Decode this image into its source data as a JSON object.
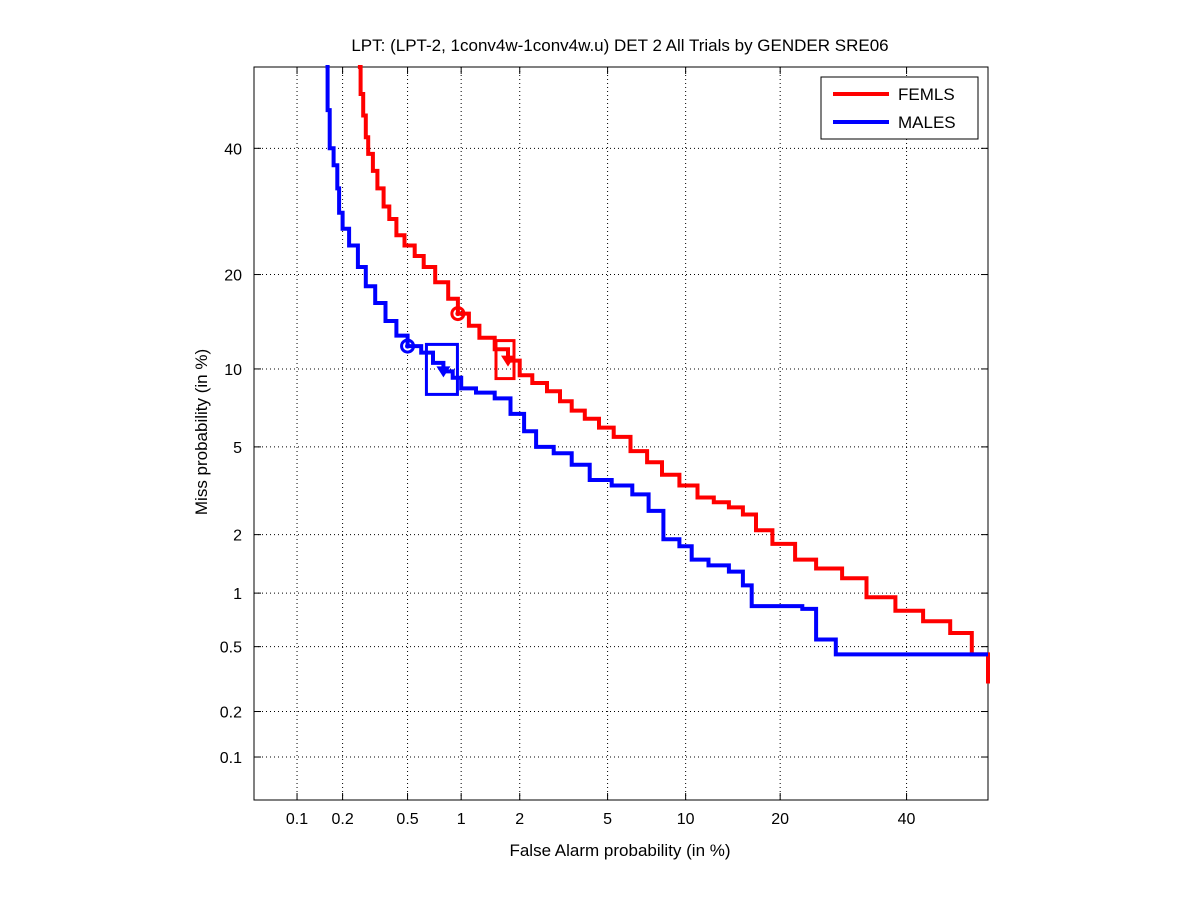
{
  "chart_data": {
    "type": "line",
    "scale": "normal-deviate (DET)",
    "title": "LPT: (LPT-2, 1conv4w-1conv4w.u) DET 2 All Trials by GENDER SRE06",
    "xlabel": "False Alarm probability (in %)",
    "ylabel": "Miss probability (in %)",
    "xlim": [
      0.05,
      55
    ],
    "ylim": [
      0.05,
      55
    ],
    "xticks": [
      0.1,
      0.2,
      0.5,
      1,
      2,
      5,
      10,
      20,
      40
    ],
    "xtick_labels": [
      "0.1",
      "0.2",
      "0.5",
      "1",
      "2",
      "5",
      "10",
      "20",
      "40"
    ],
    "yticks": [
      0.1,
      0.2,
      0.5,
      1,
      2,
      5,
      10,
      20,
      40
    ],
    "ytick_labels": [
      "0.1",
      "0.2",
      "0.5",
      "1",
      "2",
      "5",
      "10",
      "20",
      "40"
    ],
    "grid": true,
    "legend_position": "top-right",
    "series": [
      {
        "name": "FEMLS",
        "color": "#ff0000",
        "points": [
          [
            0.25,
            55
          ],
          [
            0.26,
            50
          ],
          [
            0.27,
            46
          ],
          [
            0.28,
            42
          ],
          [
            0.29,
            39
          ],
          [
            0.31,
            36
          ],
          [
            0.33,
            33
          ],
          [
            0.36,
            30
          ],
          [
            0.39,
            28
          ],
          [
            0.43,
            25.5
          ],
          [
            0.48,
            24
          ],
          [
            0.55,
            22.5
          ],
          [
            0.62,
            21
          ],
          [
            0.72,
            19
          ],
          [
            0.85,
            17
          ],
          [
            0.96,
            15.3
          ],
          [
            1.1,
            14
          ],
          [
            1.25,
            12.8
          ],
          [
            1.5,
            11.7
          ],
          [
            1.75,
            10.7
          ],
          [
            2.0,
            9.5
          ],
          [
            2.3,
            8.9
          ],
          [
            2.7,
            8.3
          ],
          [
            3.1,
            7.6
          ],
          [
            3.5,
            7.0
          ],
          [
            4.0,
            6.5
          ],
          [
            4.6,
            6.0
          ],
          [
            5.3,
            5.5
          ],
          [
            6.2,
            4.8
          ],
          [
            7.2,
            4.3
          ],
          [
            8.2,
            3.8
          ],
          [
            9.5,
            3.4
          ],
          [
            11,
            3.0
          ],
          [
            12.5,
            2.85
          ],
          [
            14,
            2.7
          ],
          [
            15.5,
            2.5
          ],
          [
            17,
            2.1
          ],
          [
            19,
            1.8
          ],
          [
            22,
            1.5
          ],
          [
            25,
            1.35
          ],
          [
            29,
            1.2
          ],
          [
            33,
            0.95
          ],
          [
            38,
            0.8
          ],
          [
            43,
            0.7
          ],
          [
            48,
            0.6
          ],
          [
            52,
            0.45
          ],
          [
            55,
            0.3
          ]
        ],
        "min_dcf_point": [
          0.96,
          15.3
        ],
        "act_dcf_point": [
          1.75,
          10.7
        ]
      },
      {
        "name": "MALES",
        "color": "#0000ff",
        "points": [
          [
            0.155,
            55
          ],
          [
            0.16,
            47
          ],
          [
            0.165,
            40
          ],
          [
            0.175,
            37
          ],
          [
            0.185,
            33
          ],
          [
            0.19,
            29
          ],
          [
            0.2,
            26.5
          ],
          [
            0.22,
            24
          ],
          [
            0.25,
            21
          ],
          [
            0.28,
            18.5
          ],
          [
            0.32,
            16.5
          ],
          [
            0.37,
            14.5
          ],
          [
            0.43,
            13
          ],
          [
            0.5,
            12
          ],
          [
            0.6,
            11.4
          ],
          [
            0.7,
            10.5
          ],
          [
            0.8,
            9.8
          ],
          [
            0.9,
            9.3
          ],
          [
            1.0,
            8.5
          ],
          [
            1.2,
            8.2
          ],
          [
            1.5,
            7.8
          ],
          [
            1.8,
            6.8
          ],
          [
            2.1,
            5.8
          ],
          [
            2.4,
            5.0
          ],
          [
            2.9,
            4.7
          ],
          [
            3.5,
            4.2
          ],
          [
            4.2,
            3.6
          ],
          [
            5.2,
            3.4
          ],
          [
            6.3,
            3.1
          ],
          [
            7.3,
            2.6
          ],
          [
            8.3,
            1.9
          ],
          [
            9.5,
            1.75
          ],
          [
            10.5,
            1.5
          ],
          [
            12,
            1.4
          ],
          [
            14,
            1.3
          ],
          [
            15.5,
            1.1
          ],
          [
            16.5,
            0.85
          ],
          [
            20,
            0.85
          ],
          [
            23,
            0.82
          ],
          [
            25,
            0.55
          ],
          [
            28,
            0.45
          ],
          [
            40,
            0.45
          ],
          [
            55,
            0.45
          ]
        ],
        "min_dcf_point": [
          0.5,
          12
        ],
        "act_dcf_point": [
          0.8,
          9.8
        ]
      }
    ]
  }
}
